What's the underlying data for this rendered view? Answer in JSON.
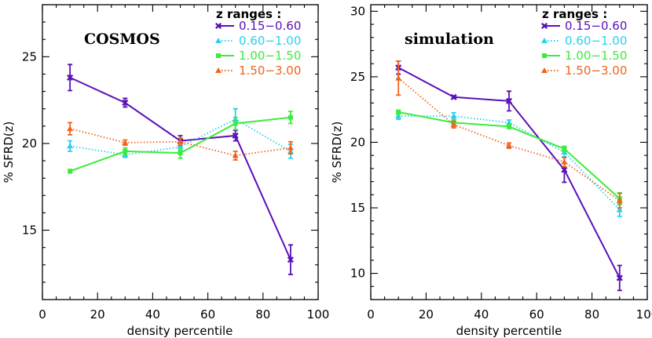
{
  "chart_data": [
    {
      "type": "line",
      "title": "COSMOS",
      "xlabel": "density percentile",
      "ylabel": "% SFRD(z)",
      "xlim": [
        0,
        100
      ],
      "ylim": [
        11.0,
        28.0
      ],
      "xticks": [
        0,
        20,
        40,
        60,
        80,
        100
      ],
      "yticks": [
        15,
        20,
        25
      ],
      "x": [
        10,
        30,
        50,
        70,
        90
      ],
      "legend_title": "z ranges :",
      "series": [
        {
          "name": "0.15−0.60",
          "color": "#5a10b8",
          "dash": "solid",
          "marker": "x",
          "values": [
            23.8,
            22.35,
            20.15,
            20.45,
            13.3
          ],
          "errors": [
            0.75,
            0.25,
            0.3,
            0.3,
            0.85
          ]
        },
        {
          "name": "0.60−1.00",
          "color": "#28d0f0",
          "dash": "dotted",
          "marker": "triangle",
          "values": [
            19.85,
            19.35,
            19.8,
            21.4,
            19.55
          ],
          "errors": [
            0.3,
            0.15,
            0.2,
            0.6,
            0.4
          ]
        },
        {
          "name": "1.00−1.50",
          "color": "#3cec3c",
          "dash": "solid",
          "marker": "square",
          "values": [
            18.4,
            19.55,
            19.45,
            21.15,
            21.5
          ],
          "errors": [
            0.1,
            0.2,
            0.3,
            0.35,
            0.35
          ]
        },
        {
          "name": "1.50−3.00",
          "color": "#f0641e",
          "dash": "dotted",
          "marker": "triangle",
          "values": [
            20.85,
            20.05,
            20.1,
            19.3,
            19.75
          ],
          "errors": [
            0.35,
            0.15,
            0.2,
            0.25,
            0.35
          ]
        }
      ]
    },
    {
      "type": "line",
      "title": "simulation",
      "xlabel": "density percentile",
      "ylabel": "% SFRD(z)",
      "xlim": [
        0,
        100
      ],
      "ylim": [
        8.0,
        30.5
      ],
      "xticks": [
        0,
        20,
        40,
        60,
        80,
        100
      ],
      "yticks": [
        10,
        15,
        20,
        25,
        30
      ],
      "x": [
        10,
        30,
        50,
        70,
        90
      ],
      "legend_title": "z ranges :",
      "series": [
        {
          "name": "0.15−0.60",
          "color": "#5a10b8",
          "dash": "solid",
          "marker": "x",
          "values": [
            25.7,
            23.45,
            23.15,
            17.9,
            9.65
          ],
          "errors": [
            0.5,
            0.1,
            0.75,
            0.95,
            0.95
          ]
        },
        {
          "name": "0.60−1.00",
          "color": "#28d0f0",
          "dash": "dotted",
          "marker": "triangle",
          "values": [
            22.0,
            22.0,
            21.5,
            19.25,
            14.85
          ],
          "errors": [
            0.25,
            0.25,
            0.2,
            0.35,
            0.5
          ]
        },
        {
          "name": "1.00−1.50",
          "color": "#3cec3c",
          "dash": "solid",
          "marker": "square",
          "values": [
            22.3,
            21.5,
            21.2,
            19.5,
            15.7
          ],
          "errors": [
            0.15,
            0.15,
            0.15,
            0.2,
            0.45
          ]
        },
        {
          "name": "1.50−3.00",
          "color": "#f0641e",
          "dash": "dotted",
          "marker": "triangle",
          "values": [
            24.9,
            21.35,
            19.75,
            18.5,
            15.55
          ],
          "errors": [
            1.3,
            0.25,
            0.2,
            0.35,
            0.55
          ]
        }
      ]
    }
  ]
}
